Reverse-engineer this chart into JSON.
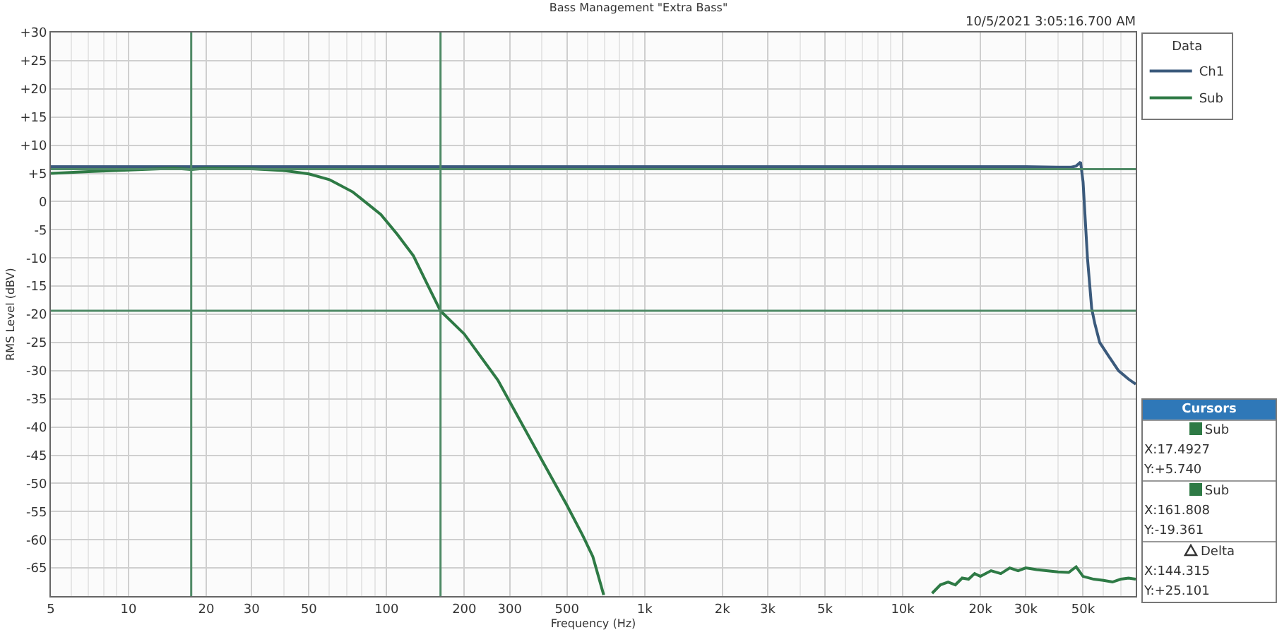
{
  "chart_data": {
    "type": "line",
    "title": "Bass Management \"Extra Bass\"",
    "xlabel": "Frequency (Hz)",
    "ylabel": "RMS Level (dBV)",
    "legend_title": "Data",
    "legend": "right",
    "grid": true,
    "log": "x",
    "marker": "none",
    "line_style": "solid",
    "xlim": [
      5,
      80000
    ],
    "ylim": [
      -70,
      30
    ],
    "xticks": [
      5,
      10,
      20,
      30,
      50,
      100,
      200,
      300,
      500,
      {
        "value": 1000,
        "label": "1k"
      },
      {
        "value": 2000,
        "label": "2k"
      },
      {
        "value": 3000,
        "label": "3k"
      },
      {
        "value": 5000,
        "label": "5k"
      },
      {
        "value": 10000,
        "label": "10k"
      },
      {
        "value": 20000,
        "label": "20k"
      },
      {
        "value": 30000,
        "label": "30k"
      },
      {
        "value": 50000,
        "label": "50k"
      }
    ],
    "yticks": [
      {
        "value": 30,
        "label": "+30"
      },
      {
        "value": 25,
        "label": "+25"
      },
      {
        "value": 20,
        "label": "+20"
      },
      {
        "value": 15,
        "label": "+15"
      },
      {
        "value": 10,
        "label": "+10"
      },
      {
        "value": 5,
        "label": "+5"
      },
      0,
      -5,
      -10,
      -15,
      -20,
      -25,
      -30,
      -35,
      -40,
      -45,
      -50,
      -55,
      -60,
      -65
    ],
    "series": [
      {
        "name": "Ch1",
        "color": "#3b5a7c",
        "x": [
          5,
          10,
          20,
          50,
          100,
          1000,
          10000,
          20000,
          30000,
          40000,
          45000,
          47000,
          48900,
          50000,
          52000,
          54000,
          55500,
          58000,
          62800,
          68600,
          75000,
          80000
        ],
        "values": [
          6.2,
          6.2,
          6.2,
          6.2,
          6.2,
          6.2,
          6.2,
          6.2,
          6.2,
          6.1,
          6.1,
          6.3,
          7.0,
          3.5,
          -10,
          -19,
          -21.6,
          -25,
          -27.4,
          -30,
          -31.5,
          -32.4
        ]
      },
      {
        "name": "Sub",
        "color": "#2e7a45",
        "x": [
          5,
          7,
          10,
          15,
          17.4927,
          20,
          30,
          40,
          50,
          60,
          74,
          95,
          110,
          127,
          145,
          161.808,
          200,
          270,
          300,
          409,
          500,
          575,
          630,
          694,
          3000,
          13000,
          14000,
          15000,
          16000,
          17000,
          18000,
          19000,
          20000,
          22000,
          24000,
          26000,
          28000,
          30000,
          33000,
          36000,
          40000,
          44000,
          47000,
          50000,
          55000,
          60000,
          65000,
          70000,
          75000,
          80000
        ],
        "values": [
          5.0,
          5.3,
          5.6,
          5.9,
          5.7,
          5.9,
          5.8,
          5.5,
          4.9,
          3.9,
          1.7,
          -2.3,
          -5.8,
          -9.6,
          -15,
          -19.4,
          -23.5,
          -31.7,
          -35.5,
          -46.7,
          -53.9,
          -59.2,
          -63,
          -69.8,
          null,
          -69.5,
          -68,
          -67.5,
          -68,
          -66.8,
          -67,
          -66,
          -66.5,
          -65.5,
          -66,
          -65,
          -65.5,
          -65,
          -65.3,
          -65.5,
          -65.7,
          -65.8,
          -64.8,
          -66.5,
          -67,
          -67.2,
          -67.5,
          -67,
          -66.8,
          -67
        ]
      }
    ],
    "ref_lines": [
      {
        "axis": "x",
        "value": 17.4927,
        "color": "#4f8a66"
      },
      {
        "axis": "x",
        "value": 161.808,
        "color": "#4f8a66"
      },
      {
        "axis": "y",
        "value": 5.74,
        "color": "#4f8a66"
      },
      {
        "axis": "y",
        "value": -19.361,
        "color": "#4f8a66"
      }
    ],
    "annotations": [
      "10/5/2021 3:05:16.700 AM",
      "Cursors",
      "Sub",
      "X:17.4927",
      "Y:+5.740",
      "Sub",
      "X:161.808",
      "Y:-19.361",
      "Delta",
      "X:144.315",
      "Y:+25.101"
    ]
  }
}
